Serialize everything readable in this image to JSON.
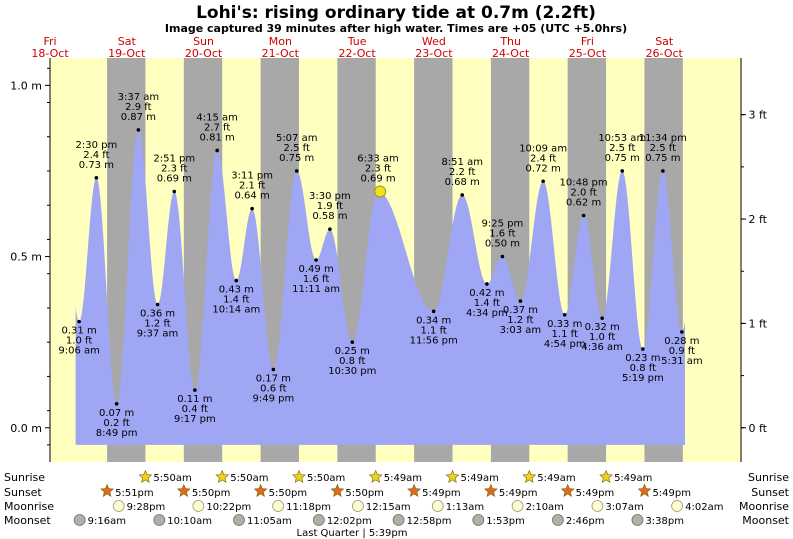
{
  "header": {
    "title": "Lohi's: rising  ordinary tide at 0.7m (2.2ft)",
    "subtitle": "Image captured 39 minutes after high water. Times are +05 (UTC +5.0hrs)"
  },
  "days": [
    {
      "name": "Fri",
      "date": "18-Oct"
    },
    {
      "name": "Sat",
      "date": "19-Oct"
    },
    {
      "name": "Sun",
      "date": "20-Oct"
    },
    {
      "name": "Mon",
      "date": "21-Oct"
    },
    {
      "name": "Tue",
      "date": "22-Oct"
    },
    {
      "name": "Wed",
      "date": "23-Oct"
    },
    {
      "name": "Thu",
      "date": "24-Oct"
    },
    {
      "name": "Fri",
      "date": "25-Oct"
    },
    {
      "name": "Sat",
      "date": "26-Oct"
    }
  ],
  "chart_data": {
    "type": "area",
    "y_left_unit": "m",
    "y_right_unit": "ft",
    "y_left_ticks": [
      "0.0 m",
      "0.5 m",
      "1.0 m"
    ],
    "y_right_ticks": [
      "0 ft",
      "1 ft",
      "2 ft",
      "3 ft"
    ],
    "ylim_m": [
      -0.1,
      1.08
    ],
    "xlim_hours": [
      0,
      216
    ],
    "x_unit": "hours from 18-Oct 00:00 (+05)",
    "current": {
      "height_m": 0.69,
      "height_ft": "2.2ft"
    },
    "points": [
      {
        "t": 9.1,
        "h": 0.31,
        "time": "9:06 am",
        "ft": "1.0 ft",
        "m": "0.31 m",
        "type": "low"
      },
      {
        "t": 14.5,
        "h": 0.73,
        "time": "2:30 pm",
        "ft": "2.4 ft",
        "m": "0.73 m",
        "type": "high"
      },
      {
        "t": 20.82,
        "h": 0.07,
        "time": "8:49 pm",
        "ft": "0.2 ft",
        "m": "0.07 m",
        "type": "low"
      },
      {
        "t": 27.62,
        "h": 0.87,
        "time": "3:37 am",
        "ft": "2.9 ft",
        "m": "0.87 m",
        "type": "high"
      },
      {
        "t": 33.62,
        "h": 0.36,
        "time": "9:37 am",
        "ft": "1.2 ft",
        "m": "0.36 m",
        "type": "low"
      },
      {
        "t": 38.85,
        "h": 0.69,
        "time": "2:51 pm",
        "ft": "2.3 ft",
        "m": "0.69 m",
        "type": "high"
      },
      {
        "t": 45.28,
        "h": 0.11,
        "time": "9:17 pm",
        "ft": "0.4 ft",
        "m": "0.11 m",
        "type": "low"
      },
      {
        "t": 52.25,
        "h": 0.81,
        "time": "4:15 am",
        "ft": "2.7 ft",
        "m": "0.81 m",
        "type": "high"
      },
      {
        "t": 58.23,
        "h": 0.43,
        "time": "10:14 am",
        "ft": "1.4 ft",
        "m": "0.43 m",
        "type": "low"
      },
      {
        "t": 63.18,
        "h": 0.64,
        "time": "3:11 pm",
        "ft": "2.1 ft",
        "m": "0.64 m",
        "type": "high"
      },
      {
        "t": 69.82,
        "h": 0.17,
        "time": "9:49 pm",
        "ft": "0.6 ft",
        "m": "0.17 m",
        "type": "low"
      },
      {
        "t": 77.12,
        "h": 0.75,
        "time": "5:07 am",
        "ft": "2.5 ft",
        "m": "0.75 m",
        "type": "high"
      },
      {
        "t": 83.18,
        "h": 0.49,
        "time": "11:11 am",
        "ft": "1.6 ft",
        "m": "0.49 m",
        "type": "low"
      },
      {
        "t": 87.5,
        "h": 0.58,
        "time": "3:30 pm",
        "ft": "1.9 ft",
        "m": "0.58 m",
        "type": "high"
      },
      {
        "t": 94.5,
        "h": 0.25,
        "time": "10:30 pm",
        "ft": "0.8 ft",
        "m": "0.25 m",
        "type": "low"
      },
      {
        "t": 102.55,
        "h": 0.69,
        "time": "6:33 am",
        "ft": "2.3 ft",
        "m": "0.69 m",
        "type": "high"
      },
      {
        "t": 119.93,
        "h": 0.34,
        "time": "11:56 pm",
        "ft": "1.1 ft",
        "m": "0.34 m",
        "type": "low"
      },
      {
        "t": 128.85,
        "h": 0.68,
        "time": "8:51 am",
        "ft": "2.2 ft",
        "m": "0.68 m",
        "type": "high"
      },
      {
        "t": 136.57,
        "h": 0.42,
        "time": "4:34 pm",
        "ft": "1.4 ft",
        "m": "0.42 m",
        "type": "low"
      },
      {
        "t": 141.42,
        "h": 0.5,
        "time": "9:25 pm",
        "ft": "1.6 ft",
        "m": "0.50 m",
        "type": "high"
      },
      {
        "t": 147.05,
        "h": 0.37,
        "time": "3:03 am",
        "ft": "1.2 ft",
        "m": "0.37 m",
        "type": "low"
      },
      {
        "t": 154.15,
        "h": 0.72,
        "time": "10:09 am",
        "ft": "2.4 ft",
        "m": "0.72 m",
        "type": "high"
      },
      {
        "t": 160.9,
        "h": 0.33,
        "time": "4:54 pm",
        "ft": "1.1 ft",
        "m": "0.33 m",
        "type": "low"
      },
      {
        "t": 166.8,
        "h": 0.62,
        "time": "10:48 pm",
        "ft": "2.0 ft",
        "m": "0.62 m",
        "type": "high"
      },
      {
        "t": 172.6,
        "h": 0.32,
        "time": "4:36 am",
        "ft": "1.0 ft",
        "m": "0.32 m",
        "type": "low"
      },
      {
        "t": 178.88,
        "h": 0.75,
        "time": "10:53 am",
        "ft": "2.5 ft",
        "m": "0.75 m",
        "type": "high"
      },
      {
        "t": 185.32,
        "h": 0.23,
        "time": "5:19 pm",
        "ft": "0.8 ft",
        "m": "0.23 m",
        "type": "low"
      },
      {
        "t": 191.57,
        "h": 0.75,
        "time": "11:34 pm",
        "ft": "2.5 ft",
        "m": "0.75 m",
        "type": "high"
      },
      {
        "t": 197.52,
        "h": 0.28,
        "time": "5:31 am",
        "ft": "0.9 ft",
        "m": "0.28 m",
        "type": "low"
      }
    ]
  },
  "rows": {
    "sunrise_label": "Sunrise",
    "sunset_label": "Sunset",
    "moonrise_label": "Moonrise",
    "moonset_label": "Moonset",
    "sunrise": [
      {
        "t": 29.83,
        "label": "5:50am"
      },
      {
        "t": 53.83,
        "label": "5:50am"
      },
      {
        "t": 77.83,
        "label": "5:50am"
      },
      {
        "t": 101.82,
        "label": "5:49am"
      },
      {
        "t": 125.82,
        "label": "5:49am"
      },
      {
        "t": 149.82,
        "label": "5:49am"
      },
      {
        "t": 173.82,
        "label": "5:49am"
      }
    ],
    "sunset": [
      {
        "t": 17.85,
        "label": "5:51pm"
      },
      {
        "t": 41.83,
        "label": "5:50pm"
      },
      {
        "t": 65.83,
        "label": "5:50pm"
      },
      {
        "t": 89.83,
        "label": "5:50pm"
      },
      {
        "t": 113.82,
        "label": "5:49pm"
      },
      {
        "t": 137.82,
        "label": "5:49pm"
      },
      {
        "t": 161.82,
        "label": "5:49pm"
      },
      {
        "t": 185.82,
        "label": "5:49pm"
      }
    ],
    "moonrise": [
      {
        "t": 21.47,
        "label": "9:28pm"
      },
      {
        "t": 46.37,
        "label": "10:22pm"
      },
      {
        "t": 71.3,
        "label": "11:18pm"
      },
      {
        "t": 96.25,
        "label": "12:15am"
      },
      {
        "t": 121.22,
        "label": "1:13am"
      },
      {
        "t": 146.17,
        "label": "2:10am"
      },
      {
        "t": 171.12,
        "label": "3:07am"
      },
      {
        "t": 196.03,
        "label": "4:02am"
      }
    ],
    "moonset": [
      {
        "t": 9.27,
        "label": "9:16am"
      },
      {
        "t": 34.17,
        "label": "10:10am"
      },
      {
        "t": 59.08,
        "label": "11:05am"
      },
      {
        "t": 84.03,
        "label": "12:02pm"
      },
      {
        "t": 108.97,
        "label": "12:58pm"
      },
      {
        "t": 133.88,
        "label": "1:53pm"
      },
      {
        "t": 158.77,
        "label": "2:46pm"
      },
      {
        "t": 183.63,
        "label": "3:38pm"
      }
    ],
    "moon_phase": "Last Quarter | 5:39pm"
  },
  "colors": {
    "day": "#ffffc0",
    "night": "#a8a8a8",
    "water": "#9fa6f4",
    "sunrise_star": "#e8d420",
    "sunset_star": "#e06a20",
    "moonrise": "#fffcd0",
    "moonset": "#b0b0a8",
    "day_label": "#d00000"
  }
}
